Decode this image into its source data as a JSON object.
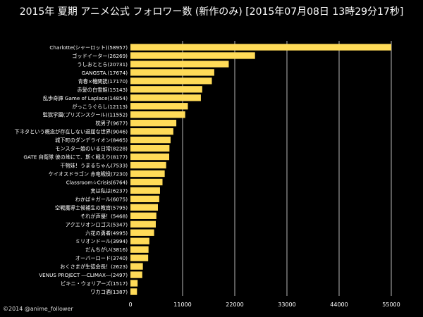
{
  "chart_data": {
    "type": "bar",
    "orientation": "horizontal",
    "title": "2015年 夏期 アニメ公式 フォロワー数 (新作のみ) [2015年07月08日 13時29分17秒]",
    "categories": [
      "Charlotte(シャーロット)(58957)",
      "ゴッドイーター(26269)",
      "うしおととら(20731)",
      "GANGSTA.(17674)",
      "青春×機関銃(17170)",
      "赤髪の白雪姫(15143)",
      "乱歩奇譚 Game of Laplace(14854)",
      "がっこうぐらし(12113)",
      "監獄学園(プリズンスクール)(11552)",
      "枕男子(9677)",
      "下ネタという概念が存在しない退屈な世界(9046)",
      "城下町のダンデライオン(8465)",
      "モンスター娘のいる日常(8228)",
      "GATE 自衛隊 彼の地にて、斯く戦えり(8177)",
      "干物妹！うまるちゃん(7533)",
      "ケイオスドラゴン 赤竜戦役(7230)",
      "Classroom☆Crisis(6764)",
      "実は私は(6237)",
      "わかば＊ガール(6075)",
      "空戦魔導士候補生の教官(5795)",
      "それが声優！(5468)",
      "アクエリオンロゴス(5347)",
      "六花の勇者(4995)",
      "ミリオンドール(3994)",
      "だんちがい(3816)",
      "オーバーロード(3740)",
      "おくさまが生徒会長！(2623)",
      "VENUS PROJECT ―CLIMAX―(2497)",
      "ビキニ・ウォリアーズ(1517)",
      "ワカコ酒(1387)"
    ],
    "values": [
      58957,
      26269,
      20731,
      17674,
      17170,
      15143,
      14854,
      12113,
      11552,
      9677,
      9046,
      8465,
      8228,
      8177,
      7533,
      7230,
      6764,
      6237,
      6075,
      5795,
      5468,
      5347,
      4995,
      3994,
      3816,
      3740,
      2623,
      2497,
      1517,
      1387
    ],
    "xticks": [
      0,
      11000,
      22000,
      33000,
      44000,
      55000
    ],
    "xlim": [
      0,
      55000
    ],
    "bar_color": "#ffdb58",
    "grid": true,
    "grid_color": "#9a9a9a"
  },
  "footer": {
    "copyright": "©2014 @anime_follower"
  }
}
